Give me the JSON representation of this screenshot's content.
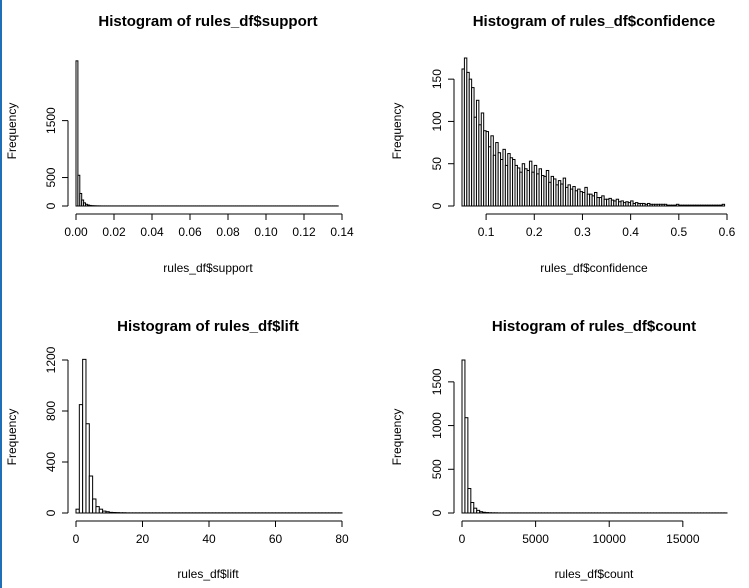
{
  "chart_data": [
    {
      "type": "bar",
      "title": "Histogram of rules_df$support",
      "xlabel": "rules_df$support",
      "ylabel": "Frequency",
      "xlim": [
        0,
        0.14
      ],
      "ylim": [
        0,
        2600
      ],
      "xticks": [
        "0.00",
        "0.02",
        "0.04",
        "0.06",
        "0.08",
        "0.10",
        "0.12",
        "0.14"
      ],
      "yticks": [
        "0",
        "500",
        "1500"
      ],
      "bin_width": 0.001,
      "values": [
        2550,
        540,
        220,
        105,
        55,
        30,
        18,
        10,
        6,
        4,
        3,
        2,
        2,
        1,
        1,
        1,
        1,
        1,
        1,
        1,
        1,
        1,
        1,
        1,
        1,
        1,
        1,
        1,
        1,
        1,
        1,
        1,
        1,
        1,
        1,
        1,
        1,
        1,
        1,
        1,
        1,
        1,
        1,
        1,
        1,
        1,
        1,
        1,
        1,
        1,
        1,
        1,
        1,
        1,
        1,
        1,
        1,
        1,
        1,
        1,
        1,
        1,
        1,
        1,
        1,
        1,
        1,
        1,
        1,
        1,
        1,
        1,
        1,
        1,
        1,
        1,
        1,
        1,
        1,
        1,
        1,
        1,
        1,
        1,
        1,
        1,
        1,
        1,
        1,
        1,
        1,
        1,
        1,
        1,
        1,
        1,
        1,
        1,
        1,
        1,
        1,
        1,
        1,
        1,
        1,
        1,
        1,
        1,
        1,
        1,
        1,
        1,
        1,
        1,
        1,
        1,
        1,
        1,
        1,
        1,
        1,
        1,
        1,
        1,
        1,
        1,
        1,
        1,
        1,
        1,
        1,
        1,
        1,
        1,
        1,
        1,
        1,
        1
      ]
    },
    {
      "type": "bar",
      "title": "Histogram of rules_df$confidence",
      "xlabel": "rules_df$confidence",
      "ylabel": "Frequency",
      "xlim": [
        0.05,
        0.6
      ],
      "ylim": [
        0,
        175
      ],
      "xticks": [
        "0.1",
        "0.2",
        "0.3",
        "0.4",
        "0.5",
        "0.6"
      ],
      "yticks": [
        "0",
        "50",
        "100",
        "150"
      ],
      "bin_width": 0.005,
      "values": [
        162,
        175,
        158,
        150,
        140,
        105,
        125,
        96,
        110,
        89,
        88,
        70,
        83,
        60,
        75,
        63,
        55,
        67,
        48,
        62,
        57,
        55,
        48,
        45,
        40,
        50,
        44,
        42,
        53,
        40,
        48,
        38,
        44,
        36,
        35,
        42,
        28,
        35,
        32,
        25,
        30,
        26,
        33,
        22,
        25,
        20,
        23,
        18,
        20,
        17,
        16,
        22,
        14,
        14,
        12,
        16,
        10,
        10,
        12,
        8,
        8,
        9,
        7,
        6,
        8,
        5,
        6,
        4,
        5,
        4,
        6,
        3,
        4,
        3,
        3,
        3,
        2,
        3,
        2,
        2,
        2,
        2,
        2,
        2,
        2,
        1,
        1,
        1,
        1,
        2,
        1,
        1,
        1,
        1,
        1,
        1,
        1,
        1,
        1,
        1,
        1,
        1,
        1,
        1,
        1,
        1,
        1,
        1,
        2
      ]
    },
    {
      "type": "bar",
      "title": "Histogram of rules_df$lift",
      "xlabel": "rules_df$lift",
      "ylabel": "Frequency",
      "xlim": [
        0,
        80
      ],
      "ylim": [
        0,
        1200
      ],
      "xticks": [
        "0",
        "20",
        "40",
        "60",
        "80"
      ],
      "yticks": [
        "0",
        "400",
        "800",
        "1200"
      ],
      "bin_width": 1,
      "values": [
        30,
        850,
        1205,
        700,
        290,
        110,
        50,
        30,
        15,
        10,
        5,
        4,
        3,
        2,
        2,
        1,
        1,
        1,
        1,
        1,
        1,
        1,
        1,
        1,
        1,
        1,
        1,
        1,
        1,
        1,
        1,
        1,
        1,
        1,
        1,
        1,
        1,
        1,
        1,
        1,
        1,
        1,
        1,
        1,
        1,
        1,
        1,
        1,
        1,
        1,
        1,
        1,
        1,
        1,
        1,
        1,
        1,
        1,
        1,
        1,
        1,
        1,
        1,
        1,
        1,
        1,
        1,
        1,
        1,
        1,
        1,
        1,
        1,
        1,
        1,
        1,
        1,
        1,
        1,
        1
      ]
    },
    {
      "type": "bar",
      "title": "Histogram of rules_df$count",
      "xlabel": "rules_df$count",
      "ylabel": "Frequency",
      "xlim": [
        0,
        18000
      ],
      "ylim": [
        0,
        1750
      ],
      "xticks": [
        "0",
        "5000",
        "10000",
        "15000"
      ],
      "yticks": [
        "0",
        "500",
        "1000",
        "1500"
      ],
      "bin_width": 200,
      "values": [
        1750,
        1090,
        280,
        120,
        55,
        30,
        15,
        8,
        5,
        3,
        2,
        2,
        1,
        1,
        1,
        1,
        1,
        1,
        1,
        1,
        1,
        1,
        1,
        1,
        1,
        1,
        1,
        1,
        1,
        1,
        1,
        1,
        1,
        1,
        1,
        1,
        1,
        1,
        1,
        1,
        1,
        1,
        1,
        1,
        1,
        1,
        1,
        1,
        1,
        1,
        1,
        1,
        1,
        1,
        1,
        1,
        1,
        1,
        1,
        1,
        1,
        1,
        1,
        1,
        1,
        1,
        1,
        1,
        1,
        1,
        1,
        1,
        1,
        1,
        1,
        1,
        1,
        1,
        1,
        1,
        1,
        1,
        1,
        1,
        1,
        1,
        1,
        1,
        1,
        1
      ]
    }
  ]
}
